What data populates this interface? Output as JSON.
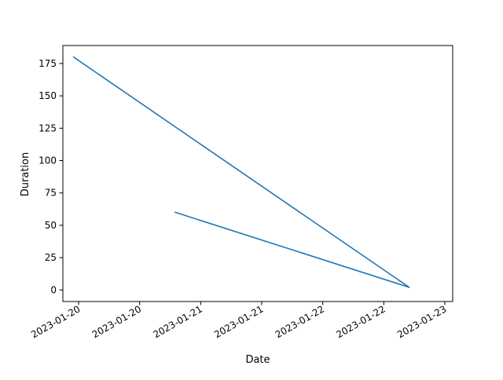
{
  "chart_data": {
    "type": "line",
    "title": "",
    "xlabel": "Date",
    "ylabel": "Duration",
    "grid": false,
    "legend": "none",
    "x_tick_labels": [
      "2023-01-20",
      "2023-01-20",
      "2023-01-21",
      "2023-01-21",
      "2023-01-22",
      "2023-01-22",
      "2023-01-23"
    ],
    "y_ticks": [
      0,
      25,
      50,
      75,
      100,
      125,
      150,
      175
    ],
    "ylim": [
      -8.9,
      188.9
    ],
    "xlim": [
      "2023-01-19 20:54",
      "2023-01-23 01:33"
    ],
    "series": [
      {
        "color": "#1f77b4",
        "x": [
          "2023-01-19 23:00",
          "2023-01-22 17:00",
          "2023-01-20 19:00"
        ],
        "y": [
          180,
          2,
          60
        ]
      }
    ]
  }
}
